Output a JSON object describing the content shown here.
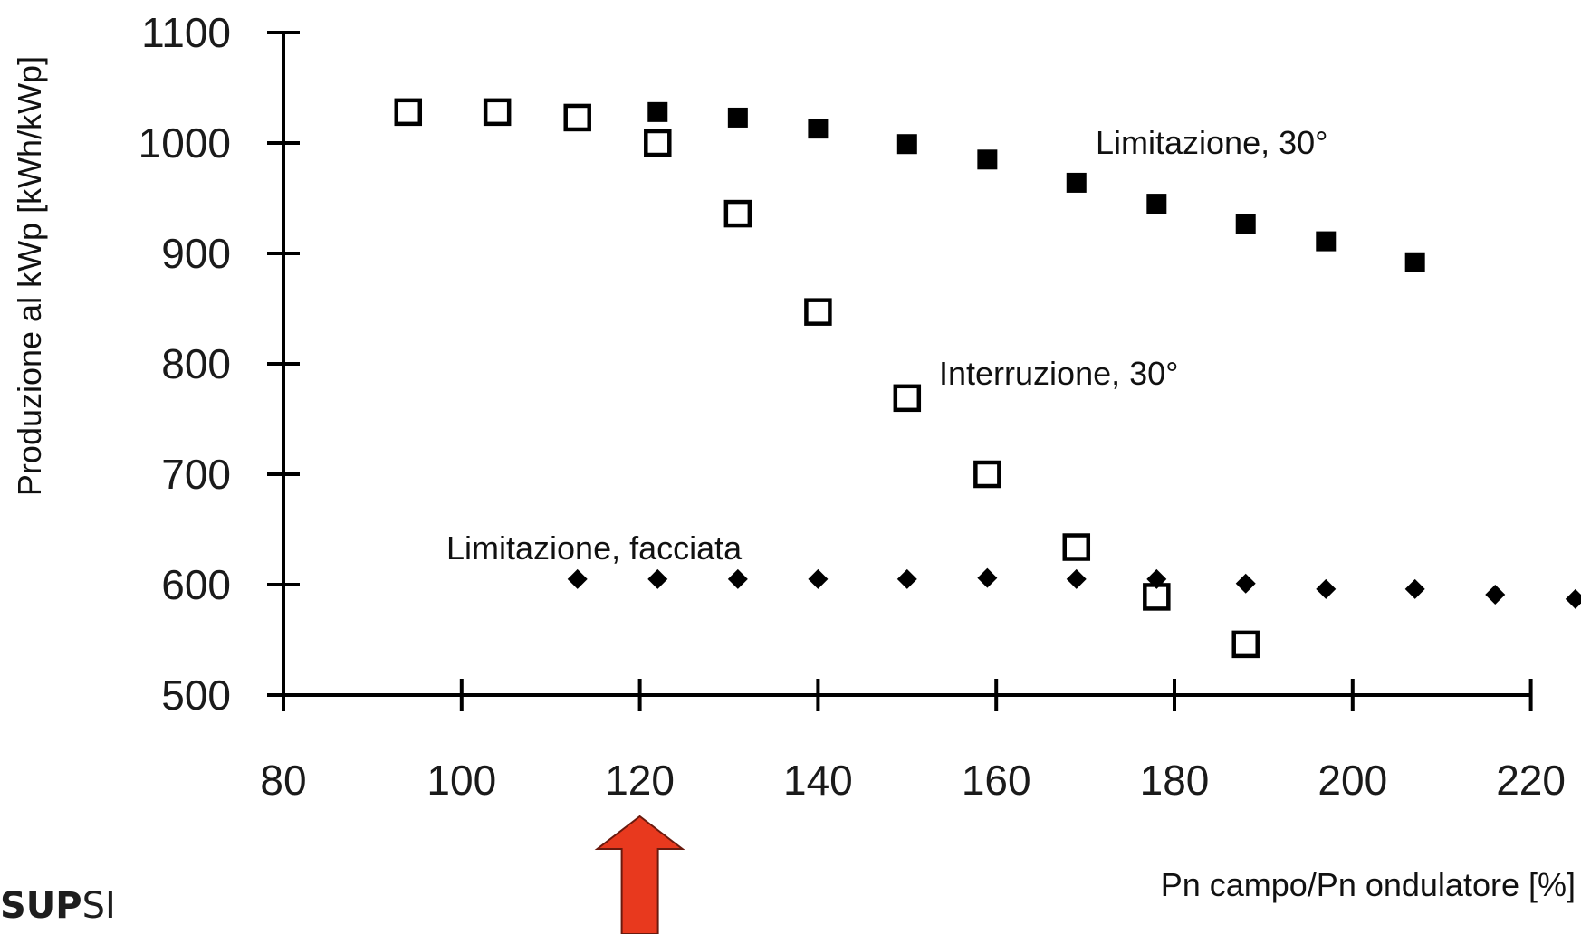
{
  "logo": {
    "strong": "SUP",
    "light": "SI"
  },
  "chart_data": {
    "type": "scatter",
    "xlabel": "Pn campo/Pn ondulatore [%]",
    "ylabel": "Produzione al kWp [kWh/kWp]",
    "xlim": [
      80,
      225
    ],
    "ylim": [
      500,
      1100
    ],
    "xticks": [
      80,
      100,
      120,
      140,
      160,
      180,
      200,
      220
    ],
    "yticks": [
      500,
      600,
      700,
      800,
      900,
      1000,
      1100
    ],
    "series": [
      {
        "name": "Limitazione, 30°",
        "marker": "filled-square",
        "x": [
          122,
          131,
          140,
          150,
          159,
          169,
          178,
          188,
          197,
          207
        ],
        "y": [
          1028,
          1023,
          1013,
          999,
          985,
          964,
          945,
          927,
          911,
          892
        ]
      },
      {
        "name": "Interruzione, 30°",
        "marker": "open-square",
        "x": [
          94,
          104,
          113,
          122,
          131,
          140,
          150,
          159,
          169,
          178,
          188
        ],
        "y": [
          1028,
          1028,
          1023,
          1000,
          936,
          847,
          769,
          700,
          634,
          589,
          546
        ]
      },
      {
        "name": "Limitazione, facciata",
        "marker": "filled-diamond",
        "x": [
          113,
          122,
          131,
          140,
          150,
          159,
          169,
          178,
          188,
          197,
          207,
          216,
          225
        ],
        "y": [
          605,
          605,
          605,
          605,
          605,
          606,
          605,
          605,
          601,
          596,
          596,
          591,
          587
        ]
      }
    ],
    "annotations": [
      {
        "text": "Limitazione, 30°",
        "series": 0
      },
      {
        "text": "Interruzione, 30°",
        "series": 1
      },
      {
        "text": "Limitazione, facciata",
        "series": 2
      }
    ],
    "arrow": {
      "x": 120,
      "color": "#e8391e"
    },
    "grid": false,
    "legend": "none"
  }
}
